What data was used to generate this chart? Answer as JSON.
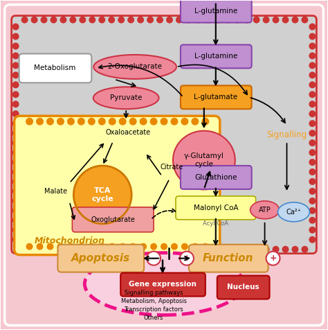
{
  "fig_w": 4.74,
  "fig_h": 4.76,
  "colors": {
    "white": "#ffffff",
    "outer_bg": "#f5c8d0",
    "outer_border": "#cc0055",
    "cell_bg": "#d0d0d0",
    "cell_border": "#cc3333",
    "mito_bg": "#ffffaa",
    "mito_border": "#e88800",
    "nucleus_bg": "#f9d0e0",
    "nucleus_border": "#ee1188",
    "purple_fill": "#c090d0",
    "purple_border": "#8844aa",
    "orange_fill": "#f5a020",
    "orange_border": "#cc6600",
    "pink_fill": "#ee8899",
    "pink_border": "#cc3344",
    "tca_fill": "#f5a020",
    "tca_border": "#cc7700",
    "apop_bg": "#f5c890",
    "apop_border": "#cc8833",
    "malonyl_fill": "#ffff99",
    "malonyl_border": "#aaaa00",
    "ca_fill": "#c0d8f0",
    "ca_border": "#4488cc",
    "signalling_color": "#f5a020",
    "mito_label_color": "#cc8800",
    "black": "#000000",
    "gene_fill": "#cc3333",
    "gene_border": "#aa0000",
    "oxoglu_fill": "#f0a0a0",
    "oxoglu_border": "#cc3333"
  },
  "labels": {
    "lglutamine_top": "L-glutamine",
    "lglutamine": "L-glutamine",
    "lglutamate": "L-glutamate",
    "gamma_cycle": "γ-Glutamyl\ncycle",
    "glutathione": "Glutathione",
    "malonyl": "Malonyl CoA",
    "acylcoa": "Acyl CoA",
    "atp": "ATP",
    "ca2": "Ca²⁺",
    "signalling": "Signalling",
    "tca": "TCA\ncycle",
    "oxaloacetate": "Oxaloacetate",
    "citrate": "Citrate",
    "malate": "Malate",
    "oxoglutarate": "Oxoglutarate",
    "pyruvate": "Pyruvate",
    "oxoglutarate2": "2-Oxoglutarate",
    "metabolism": "Metabolism",
    "mitochondrion": "Mitochondrion",
    "apoptosis": "Apoptosis",
    "function": "Function",
    "gene_expression": "Gene expression",
    "nucleus": "Nucleus",
    "nucleus_content": "Signalling pathways\nMetabolism, Apoptosis\nTranscription factors\nOthers"
  }
}
